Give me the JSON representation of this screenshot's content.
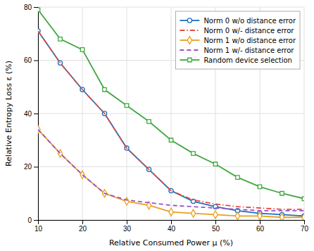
{
  "chart_data": {
    "type": "line",
    "x_label": "Relative Consumed Power μ (%)",
    "y_label": "Relative Entropy Loss ε (%)",
    "x": [
      10,
      15,
      20,
      25,
      30,
      35,
      40,
      45,
      50,
      55,
      60,
      65,
      70
    ],
    "series": [
      {
        "name": "Norm 0 w/o distance error",
        "color": "#1f6fbd",
        "marker": "circle",
        "line_style": "solid",
        "values": [
          71,
          59,
          49,
          40,
          27,
          19,
          11,
          7,
          5,
          3.5,
          2.5,
          2,
          1.5
        ]
      },
      {
        "name": "Norm 0 w/- distance error",
        "color": "#e8493a",
        "marker": "none",
        "line_style": "dashdot",
        "values": [
          71,
          59,
          49,
          40,
          27,
          19,
          11,
          7.5,
          6,
          5,
          4.5,
          4,
          4
        ]
      },
      {
        "name": "Norm 1 w/o distance error",
        "color": "#e8a020",
        "marker": "diamond",
        "line_style": "solid",
        "values": [
          34,
          25,
          17,
          10,
          7,
          5.5,
          3,
          2.5,
          2,
          1.5,
          1.5,
          1,
          1
        ]
      },
      {
        "name": "Norm 1 w/- distance error",
        "color": "#a050c8",
        "marker": "none",
        "line_style": "dashed",
        "values": [
          34,
          25,
          17,
          10,
          7.5,
          6.5,
          5.5,
          5,
          4.5,
          4,
          3.5,
          3.5,
          3.5
        ]
      },
      {
        "name": "Random device selection",
        "color": "#40a840",
        "marker": "square",
        "line_style": "solid",
        "values": [
          79,
          68,
          64,
          49,
          43,
          37,
          30,
          25,
          21,
          16,
          12.5,
          10,
          8
        ]
      }
    ],
    "xlim": [
      10,
      70
    ],
    "ylim": [
      0,
      80
    ],
    "xticks": [
      10,
      20,
      30,
      40,
      50,
      60,
      70
    ],
    "yticks": [
      0,
      20,
      40,
      60,
      80
    ],
    "grid": true,
    "legend": "upper right"
  }
}
